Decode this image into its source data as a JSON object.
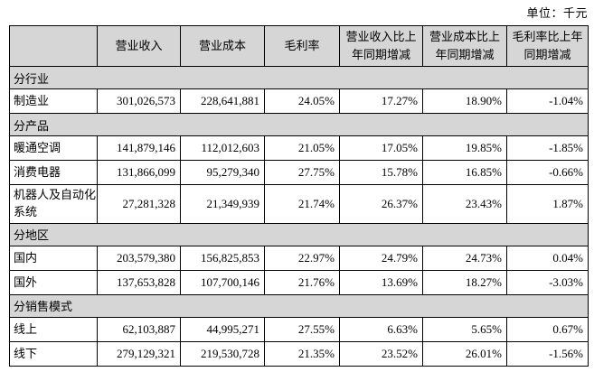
{
  "unit_label": "单位：千元",
  "colors": {
    "header_bg": "#d6d6d6",
    "border": "#000000",
    "text": "#000000"
  },
  "table": {
    "columns": [
      {
        "label": ""
      },
      {
        "label": "营业收入"
      },
      {
        "label": "营业成本"
      },
      {
        "label": "毛利率"
      },
      {
        "label": "营业收入比上年同期增减"
      },
      {
        "label": "营业成本比上年同期增减"
      },
      {
        "label": "毛利率比上年同期增减"
      }
    ],
    "rows": [
      {
        "type": "section",
        "label": "分行业"
      },
      {
        "type": "data",
        "label": "制造业",
        "values": [
          "301,026,573",
          "228,641,881",
          "24.05%",
          "17.27%",
          "18.90%",
          "-1.04%"
        ]
      },
      {
        "type": "section",
        "label": "分产品"
      },
      {
        "type": "data",
        "label": "暖通空调",
        "values": [
          "141,879,146",
          "112,012,603",
          "21.05%",
          "17.05%",
          "19.85%",
          "-1.85%"
        ]
      },
      {
        "type": "data",
        "label": "消费电器",
        "values": [
          "131,866,099",
          "95,279,340",
          "27.75%",
          "15.78%",
          "16.85%",
          "-0.66%"
        ]
      },
      {
        "type": "data",
        "label": "机器人及自动化系统",
        "values": [
          "27,281,328",
          "21,349,939",
          "21.74%",
          "26.37%",
          "23.43%",
          "1.87%"
        ]
      },
      {
        "type": "section",
        "label": "分地区"
      },
      {
        "type": "data",
        "label": "国内",
        "values": [
          "203,579,380",
          "156,825,853",
          "22.97%",
          "24.79%",
          "24.73%",
          "0.04%"
        ]
      },
      {
        "type": "data",
        "label": "国外",
        "values": [
          "137,653,828",
          "107,700,146",
          "21.76%",
          "13.69%",
          "18.27%",
          "-3.03%"
        ]
      },
      {
        "type": "section",
        "label": "分销售模式"
      },
      {
        "type": "data",
        "label": "线上",
        "values": [
          "62,103,887",
          "44,995,271",
          "27.55%",
          "6.63%",
          "5.65%",
          "0.67%"
        ]
      },
      {
        "type": "data",
        "label": "线下",
        "values": [
          "279,129,321",
          "219,530,728",
          "21.35%",
          "23.52%",
          "26.01%",
          "-1.56%"
        ]
      }
    ]
  }
}
